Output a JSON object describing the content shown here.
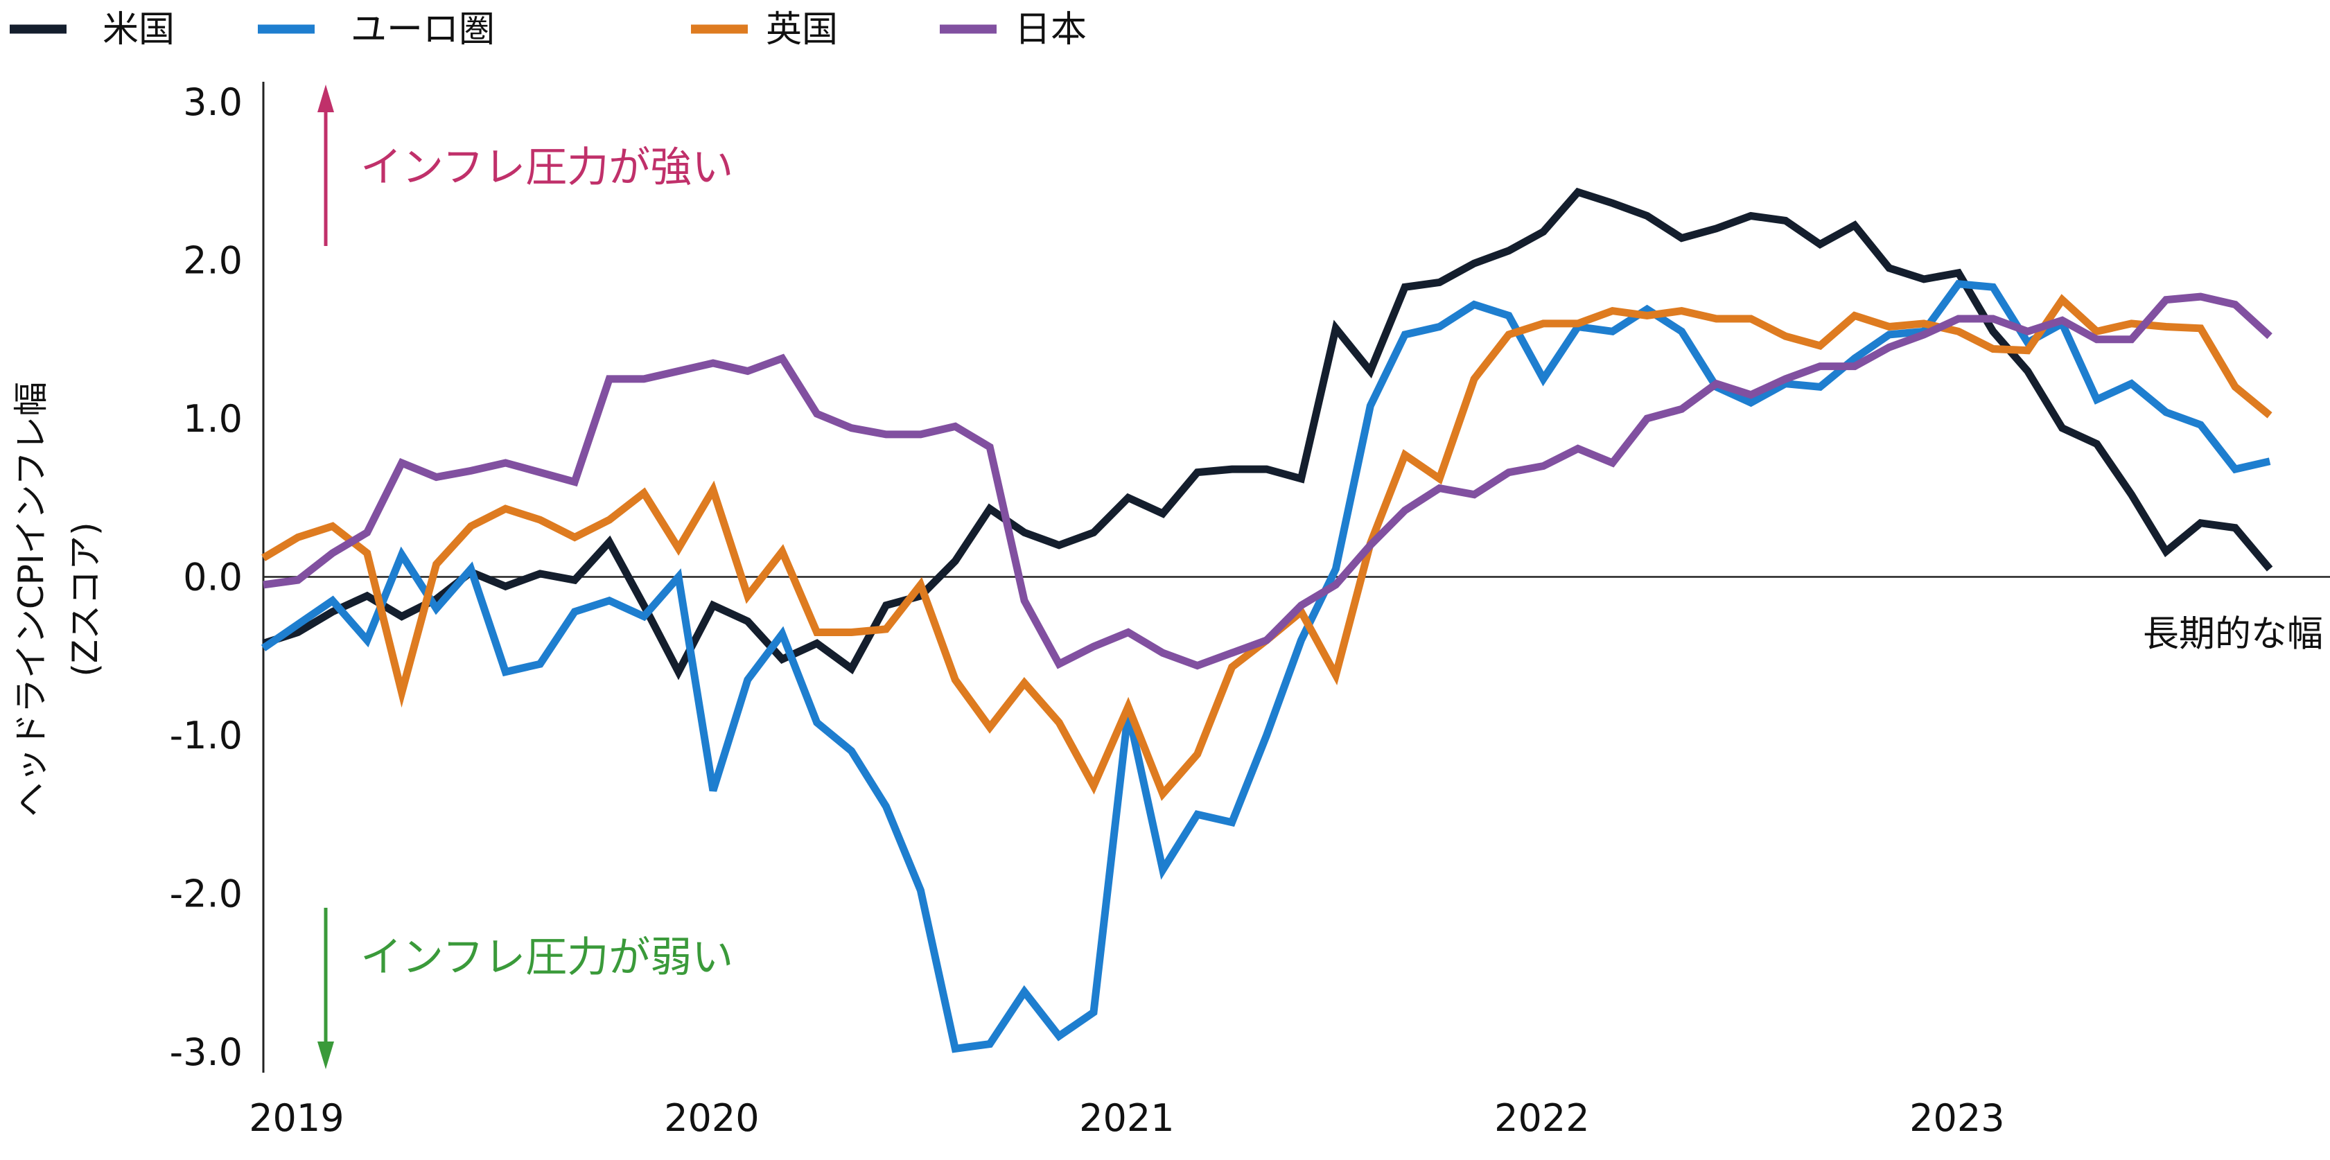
{
  "chart_data": {
    "type": "line",
    "ylabel_line1": "ヘッドラインCPIインフレ幅",
    "ylabel_line2": "(Zスコア)",
    "ylim": [
      -3.0,
      3.0
    ],
    "yticks": [
      {
        "value": 3.0,
        "label": "3.0"
      },
      {
        "value": 2.0,
        "label": "2.0"
      },
      {
        "value": 1.0,
        "label": "1.0"
      },
      {
        "value": 0.0,
        "label": "0.0"
      },
      {
        "value": -1.0,
        "label": "-1.0"
      },
      {
        "value": -2.0,
        "label": "-2.0"
      },
      {
        "value": -3.0,
        "label": "-3.0"
      }
    ],
    "xlim": [
      2019.0,
      2023.95
    ],
    "xticks": [
      {
        "value": 2019.08,
        "label": "2019"
      },
      {
        "value": 2020.08,
        "label": "2020"
      },
      {
        "value": 2021.08,
        "label": "2021"
      },
      {
        "value": 2022.08,
        "label": "2022"
      },
      {
        "value": 2023.08,
        "label": "2023"
      }
    ],
    "zero_line_label": "長期的な幅",
    "annotations": {
      "up": {
        "text": "インフレ圧力が強い",
        "color": "#c0306a"
      },
      "down": {
        "text": "インフレ圧力が弱い",
        "color": "#3a9a3a"
      }
    },
    "legend": {
      "placement": "top-left"
    },
    "series": [
      {
        "name": "米国",
        "color": "#141e2d",
        "values": [
          -0.42,
          -0.35,
          -0.22,
          -0.12,
          -0.25,
          -0.14,
          0.03,
          -0.06,
          0.02,
          -0.02,
          0.22,
          -0.18,
          -0.6,
          -0.18,
          -0.28,
          -0.52,
          -0.42,
          -0.58,
          -0.18,
          -0.12,
          0.1,
          0.43,
          0.28,
          0.2,
          0.28,
          0.5,
          0.4,
          0.66,
          0.68,
          0.68,
          0.62,
          1.57,
          1.3,
          1.83,
          1.86,
          1.98,
          2.06,
          2.18,
          2.43,
          2.36,
          2.28,
          2.14,
          2.2,
          2.28,
          2.25,
          2.1,
          2.22,
          1.95,
          1.88,
          1.92,
          1.55,
          1.3,
          0.94,
          0.84,
          0.52,
          0.16,
          0.34,
          0.31,
          0.05
        ]
      },
      {
        "name": "ユーロ圏",
        "color": "#1e7ecf",
        "values": [
          -0.45,
          -0.3,
          -0.15,
          -0.4,
          0.14,
          -0.2,
          0.05,
          -0.6,
          -0.55,
          -0.22,
          -0.15,
          -0.25,
          0.0,
          -1.35,
          -0.65,
          -0.36,
          -0.92,
          -1.1,
          -1.45,
          -1.98,
          -2.98,
          -2.95,
          -2.62,
          -2.9,
          -2.75,
          -0.85,
          -1.85,
          -1.5,
          -1.55,
          -1.0,
          -0.4,
          0.05,
          1.08,
          1.53,
          1.58,
          1.72,
          1.65,
          1.25,
          1.58,
          1.55,
          1.69,
          1.55,
          1.2,
          1.1,
          1.22,
          1.2,
          1.38,
          1.53,
          1.55,
          1.85,
          1.83,
          1.48,
          1.6,
          1.12,
          1.22,
          1.04,
          0.96,
          0.68,
          0.73
        ]
      },
      {
        "name": "英国",
        "color": "#de7b20",
        "values": [
          0.12,
          0.25,
          0.32,
          0.15,
          -0.73,
          0.08,
          0.32,
          0.43,
          0.36,
          0.25,
          0.36,
          0.53,
          0.18,
          0.55,
          -0.12,
          0.16,
          -0.35,
          -0.35,
          -0.33,
          -0.05,
          -0.65,
          -0.95,
          -0.67,
          -0.92,
          -1.32,
          -0.82,
          -1.37,
          -1.12,
          -0.57,
          -0.4,
          -0.22,
          -0.62,
          0.21,
          0.77,
          0.62,
          1.25,
          1.53,
          1.6,
          1.6,
          1.68,
          1.65,
          1.68,
          1.63,
          1.63,
          1.52,
          1.46,
          1.65,
          1.58,
          1.6,
          1.55,
          1.44,
          1.43,
          1.75,
          1.55,
          1.6,
          1.58,
          1.57,
          1.2,
          1.02
        ]
      },
      {
        "name": "日本",
        "color": "#8150a0",
        "values": [
          -0.05,
          -0.02,
          0.15,
          0.28,
          0.72,
          0.63,
          0.67,
          0.72,
          0.66,
          0.6,
          1.25,
          1.25,
          1.3,
          1.35,
          1.3,
          1.38,
          1.03,
          0.94,
          0.9,
          0.9,
          0.95,
          0.82,
          -0.15,
          -0.55,
          -0.44,
          -0.35,
          -0.48,
          -0.56,
          -0.48,
          -0.4,
          -0.18,
          -0.05,
          0.2,
          0.42,
          0.56,
          0.52,
          0.66,
          0.7,
          0.81,
          0.72,
          1.0,
          1.06,
          1.22,
          1.15,
          1.25,
          1.33,
          1.33,
          1.45,
          1.53,
          1.63,
          1.63,
          1.55,
          1.62,
          1.5,
          1.5,
          1.75,
          1.77,
          1.72,
          1.52
        ]
      }
    ]
  }
}
